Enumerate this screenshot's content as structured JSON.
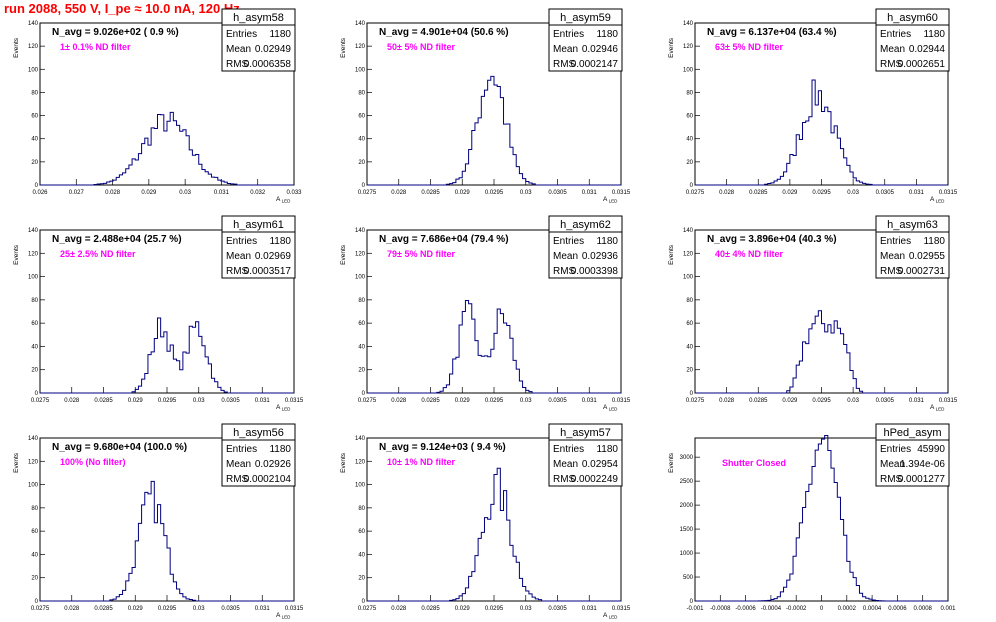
{
  "title": "run 2088,   550 V, I_pe ≈ 10.0 nA, 120 Hz",
  "chart_data": [
    {
      "type": "histogram",
      "stats": {
        "name": "h_asym58",
        "entries": "1180",
        "mean": "0.02949",
        "rms": "0.0006358"
      },
      "navg": "N_avg = 9.026e+02 ( 0.9 %)",
      "filter": "1± 0.1% ND filter",
      "xlabel": "A_LED",
      "ylabel": "Events",
      "xlim": [
        0.026,
        0.033
      ],
      "ylim": [
        0,
        140
      ],
      "xticks": [
        "0.026",
        "0.027",
        "0.028",
        "0.029",
        "0.03",
        "0.031",
        "0.032",
        "0.033"
      ],
      "yticks": [
        "0",
        "20",
        "40",
        "60",
        "80",
        "100",
        "120",
        "140"
      ],
      "mean_val": 0.02949,
      "sigma": 0.00064,
      "peak": 55,
      "noise": "wide"
    },
    {
      "type": "histogram",
      "stats": {
        "name": "h_asym59",
        "entries": "1180",
        "mean": "0.02946",
        "rms": "0.0002147"
      },
      "navg": "N_avg = 4.901e+04 (50.6 %)",
      "filter": "50± 5% ND filter",
      "xlabel": "A_LED",
      "ylabel": "Events",
      "xlim": [
        0.0275,
        0.0315
      ],
      "ylim": [
        0,
        140
      ],
      "xticks": [
        "0.0275",
        "0.028",
        "0.0285",
        "0.029",
        "0.0295",
        "0.03",
        "0.0305",
        "0.031",
        "0.0315"
      ],
      "yticks": [
        "0",
        "20",
        "40",
        "60",
        "80",
        "100",
        "120",
        "140"
      ],
      "mean_val": 0.02946,
      "sigma": 0.000215,
      "peak": 97
    },
    {
      "type": "histogram",
      "stats": {
        "name": "h_asym60",
        "entries": "1180",
        "mean": "0.02944",
        "rms": "0.0002651"
      },
      "navg": "N_avg = 6.137e+04 (63.4 %)",
      "filter": "63± 5% ND filter",
      "xlabel": "A_LED",
      "ylabel": "Events",
      "xlim": [
        0.0275,
        0.0315
      ],
      "ylim": [
        0,
        140
      ],
      "xticks": [
        "0.0275",
        "0.028",
        "0.0285",
        "0.029",
        "0.0295",
        "0.03",
        "0.0305",
        "0.031",
        "0.0315"
      ],
      "yticks": [
        "0",
        "20",
        "40",
        "60",
        "80",
        "100",
        "120",
        "140"
      ],
      "mean_val": 0.02944,
      "sigma": 0.000265,
      "peak": 78
    },
    {
      "type": "histogram",
      "stats": {
        "name": "h_asym61",
        "entries": "1180",
        "mean": "0.02969",
        "rms": "0.0003517"
      },
      "navg": "N_avg = 2.488e+04 (25.7 %)",
      "filter": "25± 2.5% ND filter",
      "xlabel": "A_LED",
      "ylabel": "Events",
      "xlim": [
        0.0275,
        0.0315
      ],
      "ylim": [
        0,
        140
      ],
      "xticks": [
        "0.0275",
        "0.028",
        "0.0285",
        "0.029",
        "0.0295",
        "0.03",
        "0.0305",
        "0.031",
        "0.0315"
      ],
      "yticks": [
        "0",
        "20",
        "40",
        "60",
        "80",
        "100",
        "120",
        "140"
      ],
      "mean_val": 0.02969,
      "sigma": 0.00035,
      "peak": 60,
      "bimodal": true
    },
    {
      "type": "histogram",
      "stats": {
        "name": "h_asym62",
        "entries": "1180",
        "mean": "0.02936",
        "rms": "0.0003398"
      },
      "navg": "N_avg = 7.686e+04 (79.4 %)",
      "filter": "79± 5% ND filter",
      "xlabel": "A_LED",
      "ylabel": "Events",
      "xlim": [
        0.0275,
        0.0315
      ],
      "ylim": [
        0,
        140
      ],
      "xticks": [
        "0.0275",
        "0.028",
        "0.0285",
        "0.029",
        "0.0295",
        "0.03",
        "0.0305",
        "0.031",
        "0.0315"
      ],
      "yticks": [
        "0",
        "20",
        "40",
        "60",
        "80",
        "100",
        "120",
        "140"
      ],
      "mean_val": 0.02936,
      "sigma": 0.00034,
      "peak": 70,
      "bimodal": true
    },
    {
      "type": "histogram",
      "stats": {
        "name": "h_asym63",
        "entries": "1180",
        "mean": "0.02955",
        "rms": "0.0002731"
      },
      "navg": "N_avg = 3.896e+04 (40.3 %)",
      "filter": "40± 4% ND filter",
      "xlabel": "A_LED",
      "ylabel": "Events",
      "xlim": [
        0.0275,
        0.0315
      ],
      "ylim": [
        0,
        140
      ],
      "xticks": [
        "0.0275",
        "0.028",
        "0.0285",
        "0.029",
        "0.0295",
        "0.03",
        "0.0305",
        "0.031",
        "0.0315"
      ],
      "yticks": [
        "0",
        "20",
        "40",
        "60",
        "80",
        "100",
        "120",
        "140"
      ],
      "mean_val": 0.02955,
      "sigma": 0.00027,
      "peak": 60,
      "flat": true
    },
    {
      "type": "histogram",
      "stats": {
        "name": "h_asym56",
        "entries": "1180",
        "mean": "0.02926",
        "rms": "0.0002104"
      },
      "navg": "N_avg = 9.680e+04 (100.0 %)",
      "filter": "100% (No filter)",
      "xlabel": "A_LED",
      "ylabel": "Events",
      "xlim": [
        0.0275,
        0.0315
      ],
      "ylim": [
        0,
        140
      ],
      "xticks": [
        "0.0275",
        "0.028",
        "0.0285",
        "0.029",
        "0.0295",
        "0.03",
        "0.0305",
        "0.031",
        "0.0315"
      ],
      "yticks": [
        "0",
        "20",
        "40",
        "60",
        "80",
        "100",
        "120",
        "140"
      ],
      "mean_val": 0.02926,
      "sigma": 0.00021,
      "peak": 87
    },
    {
      "type": "histogram",
      "stats": {
        "name": "h_asym57",
        "entries": "1180",
        "mean": "0.02954",
        "rms": "0.0002249"
      },
      "navg": "N_avg = 9.124e+03 ( 9.4 %)",
      "filter": "10± 1% ND filter",
      "xlabel": "A_LED",
      "ylabel": "Events",
      "xlim": [
        0.0275,
        0.0315
      ],
      "ylim": [
        0,
        140
      ],
      "xticks": [
        "0.0275",
        "0.028",
        "0.0285",
        "0.029",
        "0.0295",
        "0.03",
        "0.0305",
        "0.031",
        "0.0315"
      ],
      "yticks": [
        "0",
        "20",
        "40",
        "60",
        "80",
        "100",
        "120",
        "140"
      ],
      "mean_val": 0.02954,
      "sigma": 0.000225,
      "peak": 97
    },
    {
      "type": "histogram",
      "stats": {
        "name": "hPed_asym",
        "entries": "45990",
        "mean": "1.394e-06",
        "rms": "0.0001277"
      },
      "navg": "",
      "filter": "Shutter Closed",
      "xlabel": "",
      "ylabel": "Events",
      "xlim": [
        -0.001,
        0.001
      ],
      "ylim": [
        0,
        3400
      ],
      "xticks": [
        "-0.001",
        "-0.0008",
        "-0.0006",
        "-0.0004",
        "-0.0002",
        "0",
        "0.0002",
        "0.0004",
        "0.0006",
        "0.0008",
        "0.001"
      ],
      "yticks": [
        "0",
        "500",
        "1000",
        "1500",
        "2000",
        "2500",
        "3000"
      ],
      "mean_val": 1.4e-06,
      "sigma": 0.000128,
      "peak": 3300
    }
  ]
}
